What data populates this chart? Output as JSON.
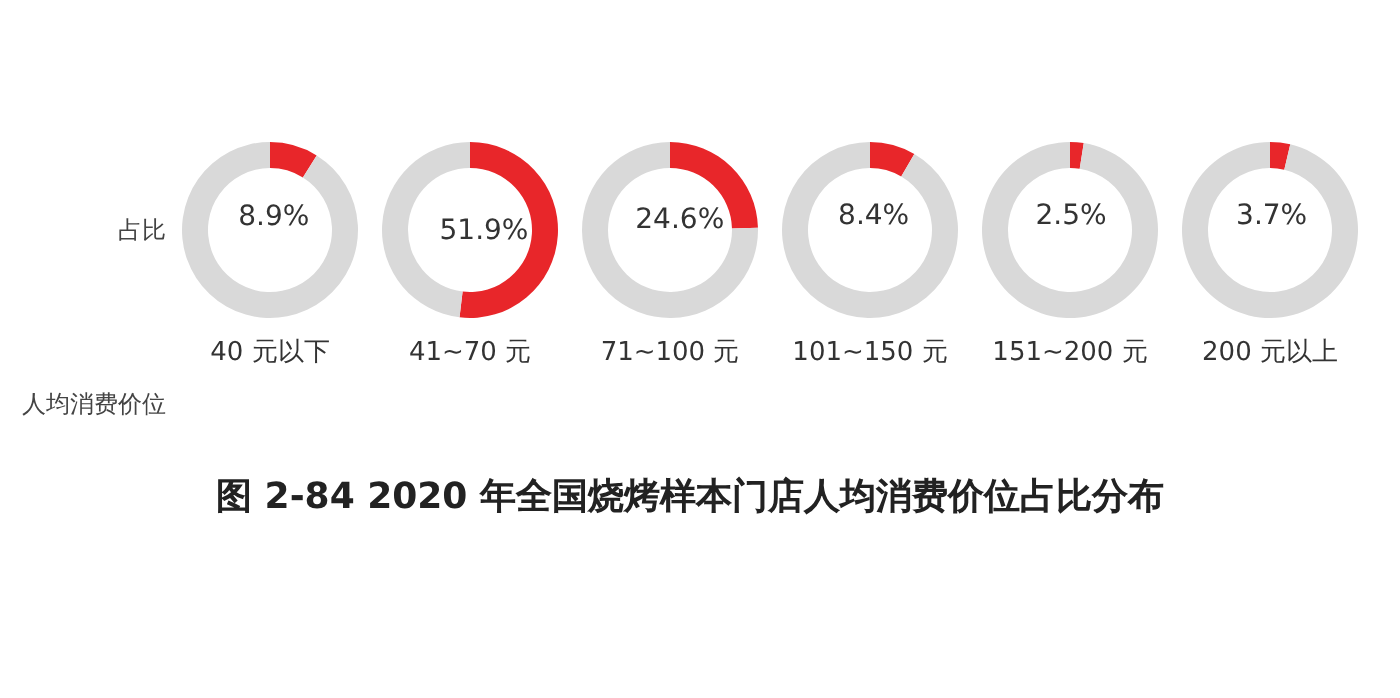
{
  "chart_data": [
    {
      "type": "donut",
      "title": "图 2-84 2020 年全国烧烤样本门店人均消费价位占比分布",
      "ylabel": "占比",
      "annotations": [
        "人均消费价位"
      ],
      "xlabel": "40 元以下",
      "categories": [
        null,
        null
      ],
      "values": [
        8.9,
        91.1
      ],
      "colors": [
        "#e8262a",
        "#d9d9d9"
      ],
      "value_labels": [
        "8.9%",
        null
      ]
    },
    {
      "type": "donut",
      "xlabel": "41~70 元",
      "categories": [
        null,
        null
      ],
      "values": [
        51.9,
        48.1
      ],
      "colors": [
        "#e8262a",
        "#d9d9d9"
      ],
      "value_labels": [
        "51.9%",
        null
      ]
    },
    {
      "type": "donut",
      "xlabel": "71~100 元",
      "categories": [
        null,
        null
      ],
      "values": [
        24.6,
        75.4
      ],
      "colors": [
        "#e8262a",
        "#d9d9d9"
      ],
      "value_labels": [
        "24.6%",
        null
      ]
    },
    {
      "type": "donut",
      "xlabel": "101~150 元",
      "categories": [
        null,
        null
      ],
      "values": [
        8.4,
        91.6
      ],
      "colors": [
        "#e8262a",
        "#d9d9d9"
      ],
      "value_labels": [
        "8.4%",
        null
      ]
    },
    {
      "type": "donut",
      "xlabel": "151~200 元",
      "categories": [
        null,
        null
      ],
      "values": [
        2.5,
        97.5
      ],
      "colors": [
        "#e8262a",
        "#d9d9d9"
      ],
      "value_labels": [
        "2.5%",
        null
      ]
    },
    {
      "type": "donut",
      "xlabel": "200 元以上",
      "categories": [
        null,
        null
      ],
      "values": [
        3.7,
        96.3
      ],
      "colors": [
        "#e8262a",
        "#d9d9d9"
      ],
      "value_labels": [
        "3.7%",
        null
      ]
    }
  ]
}
